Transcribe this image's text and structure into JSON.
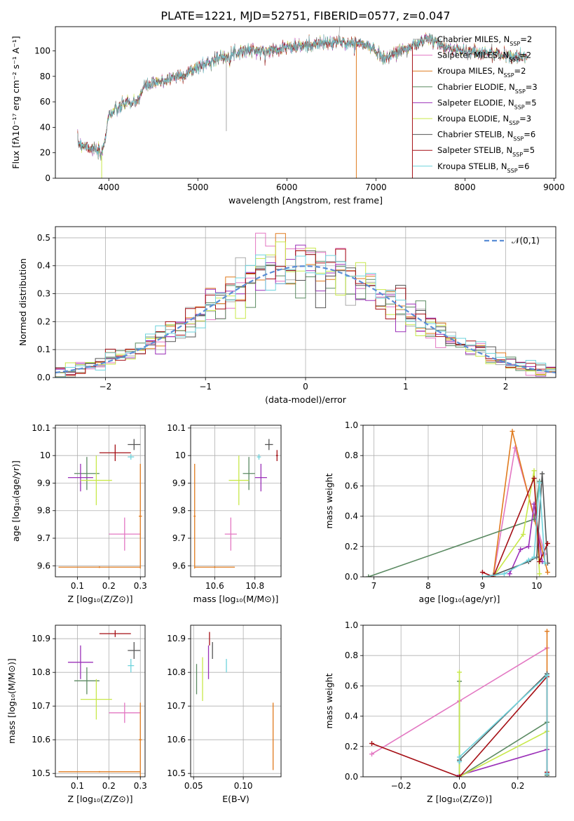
{
  "figure_title": "PLATE=1221, MJD=52751, FIBERID=0577, z=0.047",
  "models": [
    {
      "name": "Chabrier MILES, N",
      "sub": "SSP",
      "tail": "=2",
      "color": "#aaaaaa"
    },
    {
      "name": "Salpeter MILES, N",
      "sub": "SSP",
      "tail": "=2",
      "color": "#e377c2"
    },
    {
      "name": "Kroupa MILES, N",
      "sub": "SSP",
      "tail": "=2",
      "color": "#e07b1f"
    },
    {
      "name": "Chabrier ELODIE, N",
      "sub": "SSP",
      "tail": "=3",
      "color": "#5b8a62"
    },
    {
      "name": "Salpeter ELODIE, N",
      "sub": "SSP",
      "tail": "=5",
      "color": "#9b30b8"
    },
    {
      "name": "Kroupa ELODIE, N",
      "sub": "SSP",
      "tail": "=3",
      "color": "#c8e84a"
    },
    {
      "name": "Chabrier STELIB, N",
      "sub": "SSP",
      "tail": "=6",
      "color": "#555555"
    },
    {
      "name": "Salpeter STELIB, N",
      "sub": "SSP",
      "tail": "=5",
      "color": "#a50f15"
    },
    {
      "name": "Kroupa STELIB, N",
      "sub": "SSP",
      "tail": "=6",
      "color": "#6fd3dc"
    }
  ],
  "chart_data": [
    {
      "id": "spectrum",
      "type": "line",
      "xlabel": "wavelength [Angstrom, rest frame]",
      "ylabel": "Flux [fλ10⁻¹⁷ erg cm⁻² s⁻¹ A⁻¹]",
      "xlim": [
        3400,
        9020
      ],
      "ylim": [
        0,
        119
      ],
      "xticks": [
        4000,
        5000,
        6000,
        7000,
        8000,
        9000
      ],
      "yticks": [
        0,
        20,
        40,
        60,
        80,
        100
      ],
      "continuum_x": [
        3650,
        3750,
        3850,
        3920,
        3960,
        4000,
        4100,
        4200,
        4300,
        4400,
        4500,
        4600,
        4700,
        4800,
        4900,
        5000,
        5100,
        5200,
        5300,
        5400,
        5500,
        5600,
        5700,
        5800,
        5900,
        6000,
        6100,
        6200,
        6300,
        6400,
        6500,
        6600,
        6700,
        6800,
        6900,
        7000,
        7100,
        7200,
        7300,
        7400,
        7500,
        7600,
        7700,
        7800,
        7900,
        8000,
        8100,
        8200,
        8300,
        8400,
        8500,
        8600,
        8700
      ],
      "continuum_y": [
        28,
        25,
        22,
        18,
        32,
        50,
        54,
        60,
        58,
        72,
        74,
        76,
        79,
        80,
        83,
        87,
        90,
        94,
        95,
        98,
        100,
        101,
        99,
        100,
        102,
        103,
        103,
        104,
        105,
        106,
        106,
        107,
        106,
        106,
        104,
        100,
        94,
        98,
        101,
        103,
        107,
        110,
        105,
        102,
        101,
        100,
        99,
        99,
        98,
        97,
        96,
        95,
        94
      ],
      "spike_labels": "",
      "spikes": [
        {
          "x": 3920,
          "to": 0,
          "model": 5
        },
        {
          "x": 5320,
          "to": 37,
          "model": 0
        },
        {
          "x": 6780,
          "to": 0,
          "model": 2
        },
        {
          "x": 7410,
          "to": 0,
          "model": 7
        }
      ]
    },
    {
      "id": "residuals",
      "type": "histogram",
      "xlabel": "(data-model)/error",
      "ylabel": "Normed distribution",
      "xlim": [
        -2.5,
        2.5
      ],
      "ylim": [
        0,
        0.54
      ],
      "xticks": [
        -2,
        -1,
        0,
        1,
        2
      ],
      "yticks": [
        0.0,
        0.1,
        0.2,
        0.3,
        0.4,
        0.5
      ],
      "bin_width": 0.1,
      "reference_label": "𝒩(0,1)",
      "reference_color": "#5b8ed6"
    },
    {
      "id": "age_vs_Z",
      "type": "errorbar",
      "xlabel": "Z [log₁₀(Z/Z⊙)]",
      "ylabel": "age  [log₁₀(age/yr)]",
      "xlim": [
        0.03,
        0.315
      ],
      "ylim": [
        9.56,
        10.11
      ],
      "xticks": [
        0.1,
        0.2,
        0.3
      ],
      "yticks": [
        9.6,
        9.7,
        9.8,
        9.9,
        10.0,
        10.1
      ],
      "points": [
        {
          "x": 0.25,
          "xerr": 0.05,
          "y": 9.715,
          "yerr": 0.06,
          "model": 1
        },
        {
          "x": 0.3,
          "xerr": 0.005,
          "y": 9.78,
          "yerr": 0.19,
          "model": 2
        },
        {
          "x": 0.17,
          "xerr": 0.13,
          "y": 9.595,
          "yerr": 0.003,
          "model": 2
        },
        {
          "x": 0.13,
          "xerr": 0.04,
          "y": 9.935,
          "yerr": 0.06,
          "model": 3
        },
        {
          "x": 0.11,
          "xerr": 0.04,
          "y": 9.92,
          "yerr": 0.05,
          "model": 4
        },
        {
          "x": 0.16,
          "xerr": 0.05,
          "y": 9.91,
          "yerr": 0.09,
          "model": 5
        },
        {
          "x": 0.28,
          "xerr": 0.02,
          "y": 10.04,
          "yerr": 0.02,
          "model": 6
        },
        {
          "x": 0.22,
          "xerr": 0.05,
          "y": 10.01,
          "yerr": 0.03,
          "model": 7
        },
        {
          "x": 0.27,
          "xerr": 0.01,
          "y": 9.995,
          "yerr": 0.01,
          "model": 8
        }
      ]
    },
    {
      "id": "age_vs_mass",
      "type": "errorbar",
      "xlabel": "mass [log₁₀(M/M⊙)]",
      "ylabel": "",
      "xlim": [
        10.48,
        10.93
      ],
      "ylim": [
        9.56,
        10.11
      ],
      "xticks": [
        10.6,
        10.8
      ],
      "yticks": [
        9.6,
        9.7,
        9.8,
        9.9,
        10.0,
        10.1
      ],
      "points": [
        {
          "x": 10.68,
          "xerr": 0.03,
          "y": 9.715,
          "yerr": 0.06,
          "model": 1
        },
        {
          "x": 10.5,
          "xerr": 0.005,
          "y": 9.78,
          "yerr": 0.19,
          "model": 2
        },
        {
          "x": 10.6,
          "xerr": 0.1,
          "y": 9.595,
          "yerr": 0.003,
          "model": 2
        },
        {
          "x": 10.77,
          "xerr": 0.03,
          "y": 9.935,
          "yerr": 0.06,
          "model": 3
        },
        {
          "x": 10.83,
          "xerr": 0.03,
          "y": 9.92,
          "yerr": 0.05,
          "model": 4
        },
        {
          "x": 10.72,
          "xerr": 0.05,
          "y": 9.91,
          "yerr": 0.09,
          "model": 5
        },
        {
          "x": 10.87,
          "xerr": 0.02,
          "y": 10.04,
          "yerr": 0.02,
          "model": 6
        },
        {
          "x": 10.91,
          "xerr": 0.005,
          "y": 10.0,
          "yerr": 0.02,
          "model": 7
        },
        {
          "x": 10.82,
          "xerr": 0.01,
          "y": 9.995,
          "yerr": 0.01,
          "model": 8
        }
      ]
    },
    {
      "id": "weight_vs_age",
      "type": "line",
      "xlabel": "age  [log₁₀(age/yr)]",
      "ylabel": "mass weight",
      "xlim": [
        6.8,
        10.35
      ],
      "ylim": [
        0,
        1
      ],
      "xticks": [
        7,
        8,
        9,
        10
      ],
      "yticks": [
        0.0,
        0.2,
        0.4,
        0.6,
        0.8,
        1.0
      ],
      "series": [
        {
          "model": 1,
          "x": [
            9.2,
            9.6,
            10.15
          ],
          "y": [
            0.0,
            0.85,
            0.15
          ]
        },
        {
          "model": 2,
          "x": [
            9.2,
            9.55,
            10.2
          ],
          "y": [
            0.01,
            0.96,
            0.03
          ]
        },
        {
          "model": 3,
          "x": [
            6.9,
            9.95,
            10.05
          ],
          "y": [
            0.0,
            0.38,
            0.63
          ]
        },
        {
          "model": 4,
          "x": [
            9.5,
            9.7,
            9.85,
            9.95,
            10.1
          ],
          "y": [
            0.02,
            0.18,
            0.2,
            0.48,
            0.1
          ]
        },
        {
          "model": 5,
          "x": [
            9.2,
            9.75,
            9.95,
            10.05
          ],
          "y": [
            0.0,
            0.28,
            0.7,
            0.02
          ]
        },
        {
          "model": 6,
          "x": [
            9.2,
            9.85,
            10.0,
            10.1,
            10.2
          ],
          "y": [
            0.01,
            0.1,
            0.13,
            0.68,
            0.09
          ]
        },
        {
          "model": 7,
          "x": [
            9.0,
            9.2,
            9.95,
            10.05,
            10.2
          ],
          "y": [
            0.03,
            0.0,
            0.65,
            0.1,
            0.22
          ]
        },
        {
          "model": 8,
          "x": [
            9.0,
            9.4,
            9.85,
            9.95,
            10.05,
            10.15
          ],
          "y": [
            0.0,
            0.02,
            0.11,
            0.13,
            0.62,
            0.09
          ]
        }
      ]
    },
    {
      "id": "mass_vs_Z",
      "type": "errorbar",
      "xlabel": "Z [log₁₀(Z/Z⊙)]",
      "ylabel": "mass [log₁₀(M/M⊙)]",
      "xlim": [
        0.03,
        0.315
      ],
      "ylim": [
        10.49,
        10.94
      ],
      "xticks": [
        0.1,
        0.2,
        0.3
      ],
      "yticks": [
        10.5,
        10.6,
        10.7,
        10.8,
        10.9
      ],
      "points": [
        {
          "x": 0.25,
          "xerr": 0.05,
          "y": 10.68,
          "yerr": 0.03,
          "model": 1
        },
        {
          "x": 0.3,
          "xerr": 0.005,
          "y": 10.6,
          "yerr": 0.11,
          "model": 2
        },
        {
          "x": 0.17,
          "xerr": 0.13,
          "y": 10.505,
          "yerr": 0.002,
          "model": 2
        },
        {
          "x": 0.13,
          "xerr": 0.04,
          "y": 10.775,
          "yerr": 0.04,
          "model": 3
        },
        {
          "x": 0.11,
          "xerr": 0.04,
          "y": 10.83,
          "yerr": 0.05,
          "model": 4
        },
        {
          "x": 0.16,
          "xerr": 0.05,
          "y": 10.72,
          "yerr": 0.06,
          "model": 5
        },
        {
          "x": 0.28,
          "xerr": 0.02,
          "y": 10.865,
          "yerr": 0.025,
          "model": 6
        },
        {
          "x": 0.22,
          "xerr": 0.05,
          "y": 10.915,
          "yerr": 0.01,
          "model": 7
        },
        {
          "x": 0.27,
          "xerr": 0.01,
          "y": 10.82,
          "yerr": 0.02,
          "model": 8
        }
      ]
    },
    {
      "id": "mass_vs_EBV",
      "type": "errorbar",
      "xlabel": "E(B-V)",
      "ylabel": "",
      "xlim": [
        0.047,
        0.138
      ],
      "ylim": [
        10.49,
        10.94
      ],
      "xticks": [
        0.05,
        0.1
      ],
      "yticks": [
        10.5,
        10.6,
        10.7,
        10.8,
        10.9
      ],
      "points": [
        {
          "x": 0.13,
          "xerr": 0,
          "y": 10.61,
          "yerr": 0.1,
          "model": 2
        },
        {
          "x": 0.053,
          "xerr": 0,
          "y": 10.78,
          "yerr": 0.045,
          "model": 3
        },
        {
          "x": 0.065,
          "xerr": 0,
          "y": 10.83,
          "yerr": 0.05,
          "model": 4
        },
        {
          "x": 0.059,
          "xerr": 0,
          "y": 10.78,
          "yerr": 0.065,
          "model": 5
        },
        {
          "x": 0.069,
          "xerr": 0,
          "y": 10.865,
          "yerr": 0.025,
          "model": 6
        },
        {
          "x": 0.066,
          "xerr": 0,
          "y": 10.9,
          "yerr": 0.02,
          "model": 7
        },
        {
          "x": 0.083,
          "xerr": 0,
          "y": 10.82,
          "yerr": 0.02,
          "model": 8
        }
      ]
    },
    {
      "id": "weight_vs_Z",
      "type": "line",
      "xlabel": "Z [log₁₀(Z/Z⊙)]",
      "ylabel": "mass weight",
      "xlim": [
        -0.33,
        0.33
      ],
      "ylim": [
        0,
        1
      ],
      "xticks": [
        -0.2,
        0.0,
        0.2
      ],
      "yticks": [
        0.0,
        0.2,
        0.4,
        0.6,
        0.8,
        1.0
      ],
      "series": [
        {
          "model": 1,
          "x": [
            -0.3,
            0.0,
            0.3
          ],
          "y": [
            0.15,
            0.5,
            0.85
          ]
        },
        {
          "model": 2,
          "x": [
            0.3,
            0.3
          ],
          "y": [
            0.01,
            0.96
          ]
        },
        {
          "model": 3,
          "x": [
            0.0,
            0.0,
            0.3,
            0.3
          ],
          "y": [
            0.63,
            0.0,
            0.36,
            0.01
          ]
        },
        {
          "model": 4,
          "x": [
            0.0,
            0.3,
            0.3
          ],
          "y": [
            0.01,
            0.18,
            0.02
          ]
        },
        {
          "model": 5,
          "x": [
            0.0,
            0.0,
            0.3
          ],
          "y": [
            0.69,
            0.0,
            0.3
          ]
        },
        {
          "model": 6,
          "x": [
            0.0,
            0.0,
            0.3,
            0.3
          ],
          "y": [
            0.1,
            0.11,
            0.68,
            0.03
          ]
        },
        {
          "model": 7,
          "x": [
            -0.3,
            0.0,
            0.3,
            0.3
          ],
          "y": [
            0.22,
            0.0,
            0.66,
            0.03
          ]
        },
        {
          "model": 8,
          "x": [
            0.0,
            0.0,
            0.3,
            0.3
          ],
          "y": [
            0.1,
            0.13,
            0.67,
            0.02
          ]
        }
      ]
    }
  ]
}
